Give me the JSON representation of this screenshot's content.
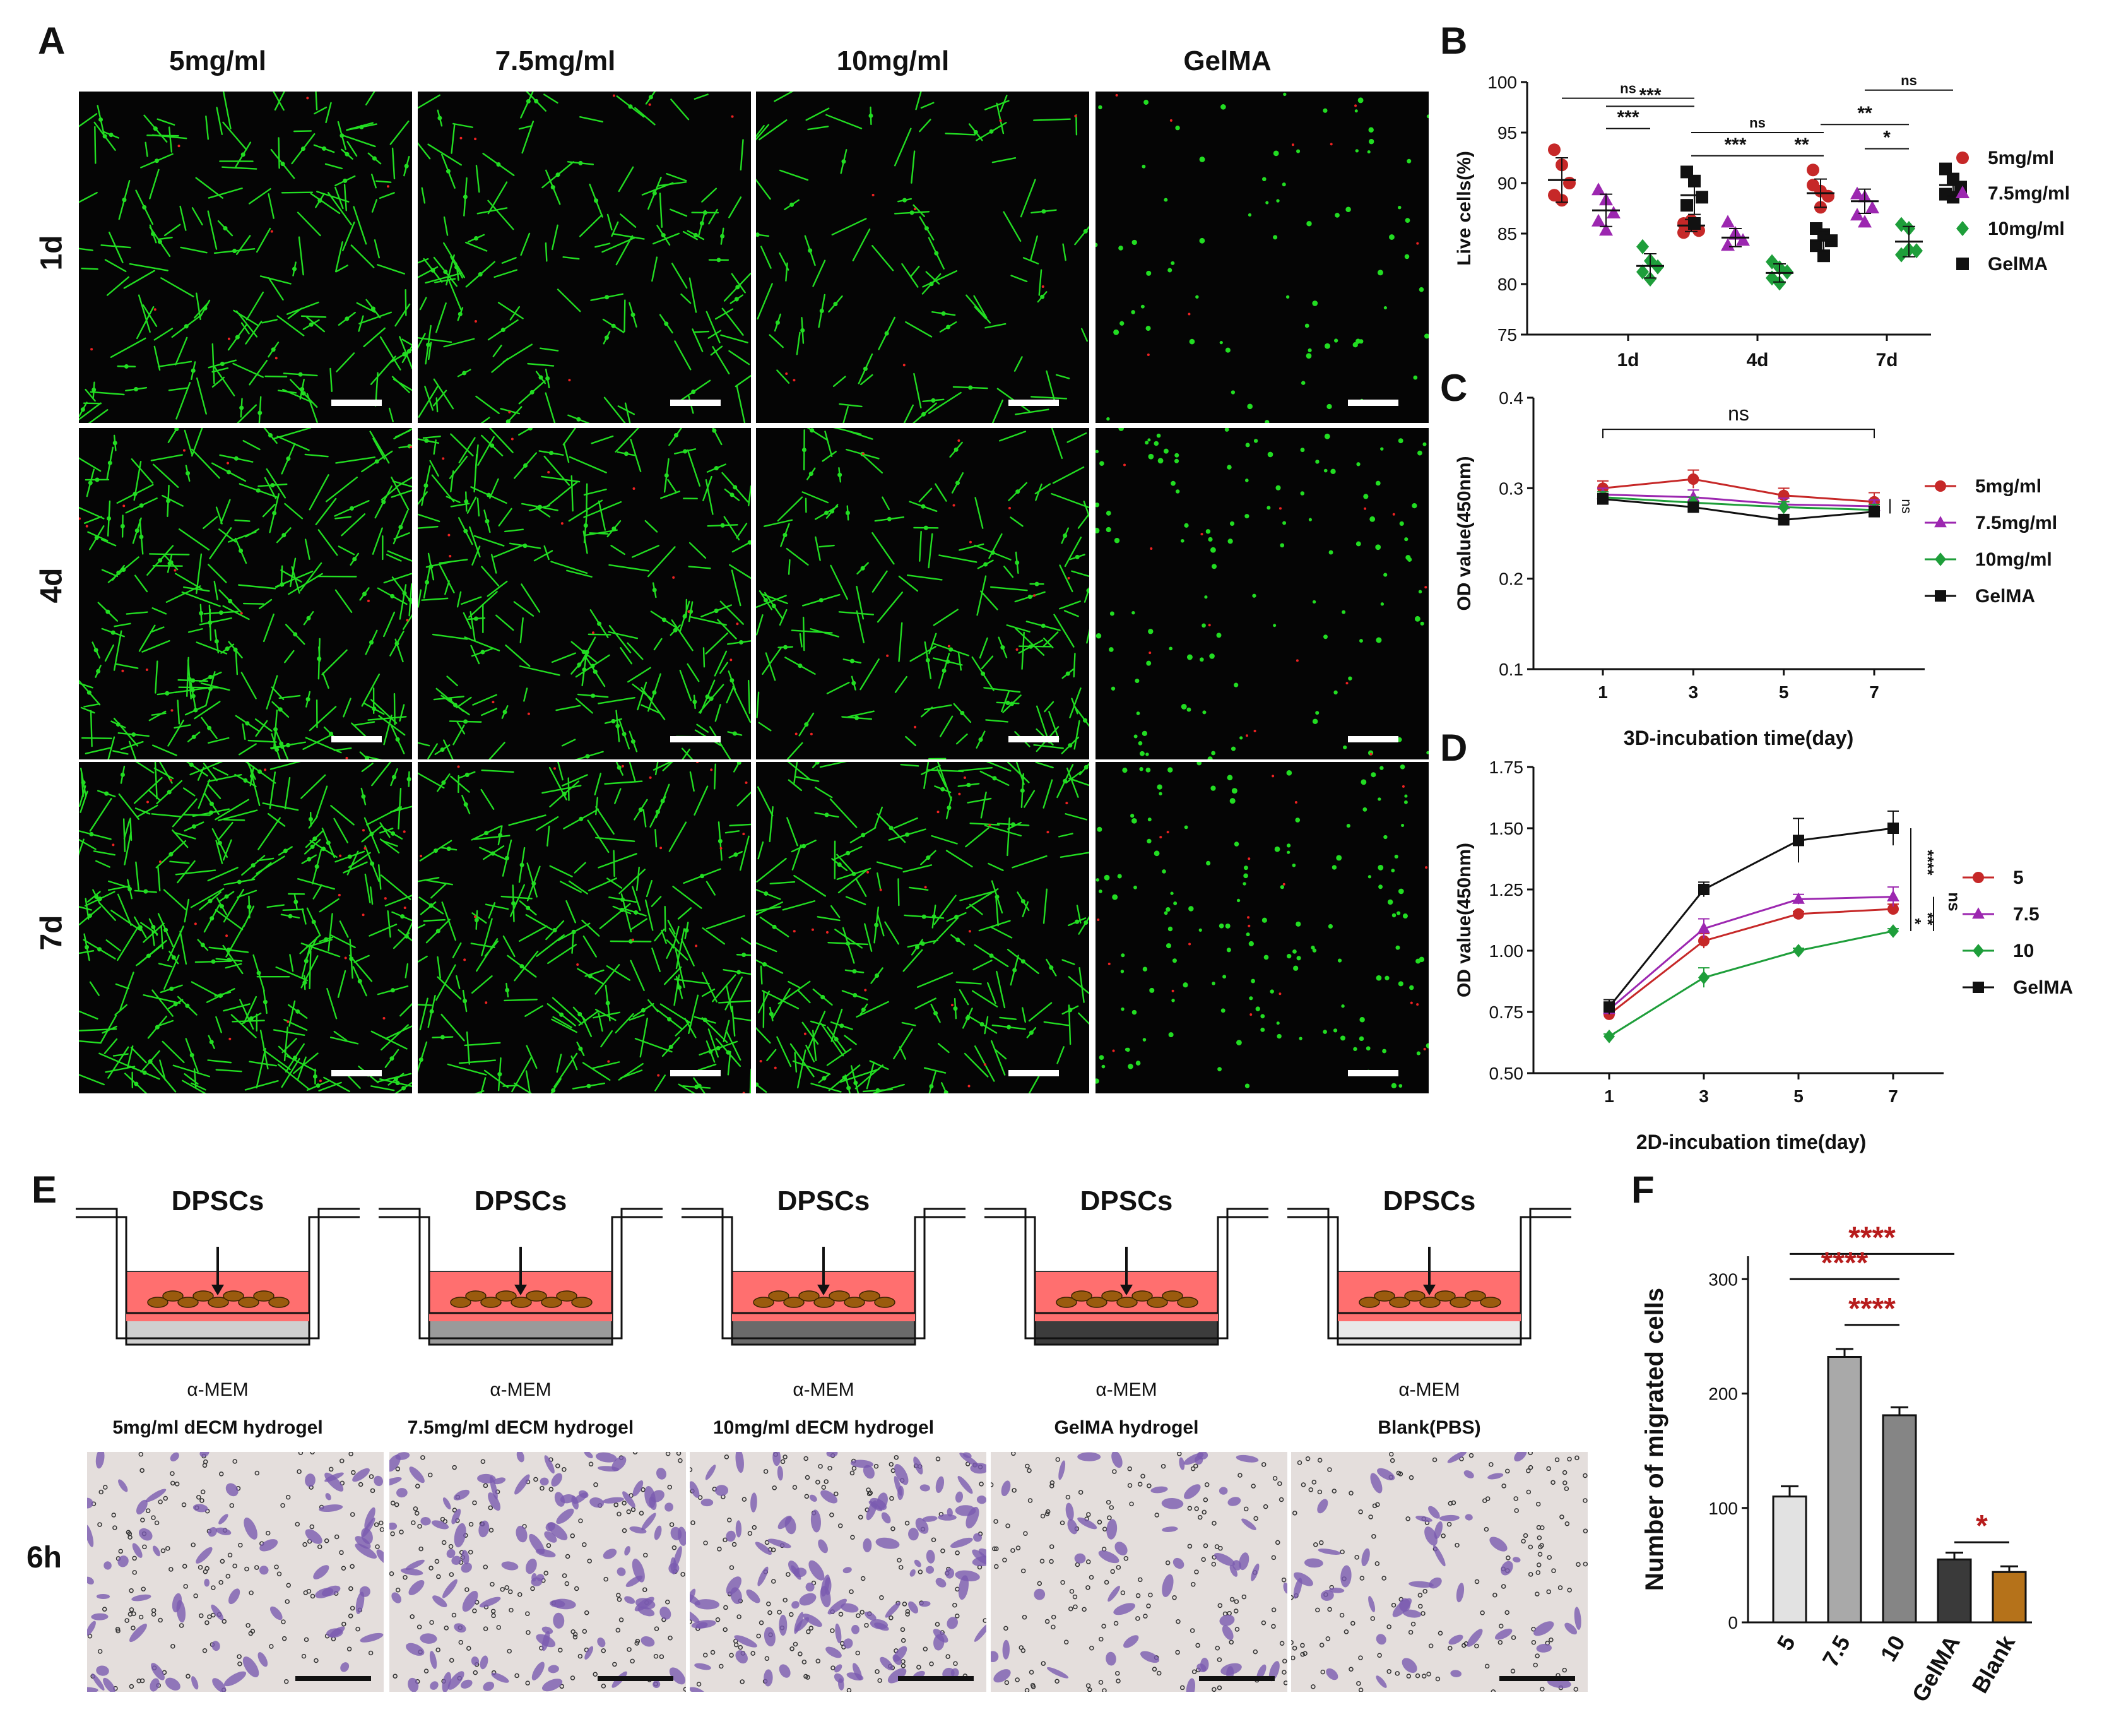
{
  "panels": {
    "a": "A",
    "b": "B",
    "c": "C",
    "d": "D",
    "e": "E",
    "f": "F"
  },
  "panel_a": {
    "columns": [
      "5mg/ml",
      "7.5mg/ml",
      "10mg/ml",
      "GelMA"
    ],
    "rows": [
      "1d",
      "4d",
      "7d"
    ]
  },
  "colors": {
    "red": "#c62828",
    "purple": "#9c27b0",
    "green": "#1e9e3a",
    "black": "#111111",
    "live_green": "#22dd22",
    "dead_red": "#ee2222",
    "stain_purple": "#7a5bb0",
    "star_red": "#b71c1c",
    "medium_red": "#ff6f6f",
    "blank_orange": "#b5721a"
  },
  "panel_e": {
    "cells_label": "DPSCs",
    "medium_label": "α-MEM",
    "inserts": [
      {
        "label": "5mg/ml dECM hydrogel",
        "fill": "#cfcfcf"
      },
      {
        "label": "7.5mg/ml dECM hydrogel",
        "fill": "#9a9a9a"
      },
      {
        "label": "10mg/ml dECM hydrogel",
        "fill": "#6a6a6a"
      },
      {
        "label": "GelMA hydrogel",
        "fill": "#3c3c3c"
      },
      {
        "label": "Blank(PBS)",
        "fill": "#e8e8e8"
      }
    ],
    "row_label": "6h"
  },
  "chart_data": [
    {
      "id": "B",
      "type": "scatter",
      "ylabel": "Live cells(%)",
      "xlabel": "",
      "categories": [
        "1d",
        "4d",
        "7d"
      ],
      "ylim": [
        75,
        100
      ],
      "yticks": [
        75,
        80,
        85,
        90,
        95,
        100
      ],
      "legend": [
        "5mg/ml",
        "7.5mg/ml",
        "10mg/ml",
        "GelMA"
      ],
      "series": [
        {
          "name": "5mg/ml",
          "points": [
            [
              93.3,
              91.8,
              90.0,
              88.8,
              88.3
            ],
            [
              86.0,
              85.8,
              85.3,
              85.1,
              86.3
            ],
            [
              91.3,
              89.2,
              88.7,
              89.8,
              87.6
            ]
          ],
          "means": [
            90.3,
            85.8,
            89.0
          ],
          "sd": [
            2.2,
            0.6,
            1.4
          ]
        },
        {
          "name": "7.5mg/ml",
          "points": [
            [
              89.3,
              88.3,
              87.0,
              86.2,
              85.3
            ],
            [
              86.1,
              85.0,
              84.3,
              83.8,
              84.9
            ],
            [
              88.9,
              88.6,
              87.5,
              86.8,
              86.1
            ]
          ],
          "means": [
            87.3,
            84.6,
            88.2
          ],
          "sd": [
            1.6,
            0.9,
            1.2
          ]
        },
        {
          "name": "10mg/ml",
          "points": [
            [
              83.7,
              82.3,
              81.7,
              81.2,
              80.5
            ],
            [
              82.2,
              81.6,
              81.2,
              80.6,
              80.1
            ],
            [
              85.9,
              85.5,
              83.3,
              82.9,
              83.4
            ]
          ],
          "means": [
            81.8,
            81.1,
            84.2
          ],
          "sd": [
            1.2,
            0.9,
            1.5
          ]
        },
        {
          "name": "GelMA",
          "points": [
            [
              91.1,
              90.2,
              88.6,
              87.8,
              86.0
            ],
            [
              85.5,
              84.9,
              84.3,
              83.8,
              82.8
            ],
            [
              91.4,
              90.4,
              89.6,
              88.9,
              88.6
            ]
          ],
          "means": [
            88.8,
            84.3,
            89.8
          ],
          "sd": [
            1.9,
            1.0,
            1.1
          ]
        }
      ],
      "annotations": [
        "ns",
        "***",
        "***",
        "ns",
        "***",
        "**",
        "ns",
        "**",
        "*"
      ]
    },
    {
      "id": "C",
      "type": "line",
      "xlabel": "3D-incubation time(day)",
      "ylabel": "OD value(450nm)",
      "x": [
        1,
        3,
        5,
        7
      ],
      "ylim": [
        0.1,
        0.4
      ],
      "yticks": [
        0.1,
        0.2,
        0.3,
        0.4
      ],
      "legend": [
        "5mg/ml",
        "7.5mg/ml",
        "10mg/ml",
        "GelMA"
      ],
      "series": [
        {
          "name": "5mg/ml",
          "values": [
            0.3,
            0.31,
            0.292,
            0.285
          ],
          "err": [
            0.008,
            0.01,
            0.008,
            0.01
          ]
        },
        {
          "name": "7.5mg/ml",
          "values": [
            0.293,
            0.29,
            0.282,
            0.28
          ],
          "err": [
            0.007,
            0.008,
            0.007,
            0.007
          ]
        },
        {
          "name": "10mg/ml",
          "values": [
            0.29,
            0.284,
            0.279,
            0.276
          ],
          "err": [
            0.006,
            0.006,
            0.006,
            0.006
          ]
        },
        {
          "name": "GelMA",
          "values": [
            0.288,
            0.279,
            0.265,
            0.274
          ],
          "err": [
            0.006,
            0.005,
            0.006,
            0.006
          ]
        }
      ],
      "annotations": [
        "ns",
        "ns"
      ]
    },
    {
      "id": "D",
      "type": "line",
      "xlabel": "2D-incubation time(day)",
      "ylabel": "OD value(450nm)",
      "x": [
        1,
        3,
        5,
        7
      ],
      "ylim": [
        0.5,
        1.75
      ],
      "yticks": [
        0.5,
        0.75,
        1.0,
        1.25,
        1.5,
        1.75
      ],
      "legend": [
        "5",
        "7.5",
        "10",
        "GelMA"
      ],
      "series": [
        {
          "name": "5",
          "values": [
            0.74,
            1.04,
            1.15,
            1.17
          ],
          "err": [
            0.02,
            0.03,
            0.01,
            0.02
          ]
        },
        {
          "name": "7.5",
          "values": [
            0.76,
            1.09,
            1.21,
            1.22
          ],
          "err": [
            0.02,
            0.04,
            0.02,
            0.04
          ]
        },
        {
          "name": "10",
          "values": [
            0.65,
            0.89,
            1.0,
            1.08
          ],
          "err": [
            0.01,
            0.04,
            0.01,
            0.01
          ]
        },
        {
          "name": "GelMA",
          "values": [
            0.77,
            1.25,
            1.45,
            1.5
          ],
          "err": [
            0.03,
            0.03,
            0.09,
            0.07
          ]
        }
      ],
      "annotations": [
        "****",
        "ns",
        "**",
        "*"
      ]
    },
    {
      "id": "F",
      "type": "bar",
      "ylabel": "Number of migrated cells",
      "categories": [
        "5",
        "7.5",
        "10",
        "GelMA",
        "Blank"
      ],
      "values": [
        110,
        232,
        181,
        55,
        44
      ],
      "err": [
        9,
        7,
        7,
        6,
        5
      ],
      "ylim": [
        0,
        320
      ],
      "yticks": [
        0,
        100,
        200,
        300
      ],
      "bar_colors": [
        "#e2e2e2",
        "#a9a9a9",
        "#858585",
        "#3a3a3a",
        "#b5721a"
      ],
      "annotations": [
        "****",
        "****",
        "****",
        "*"
      ]
    }
  ]
}
